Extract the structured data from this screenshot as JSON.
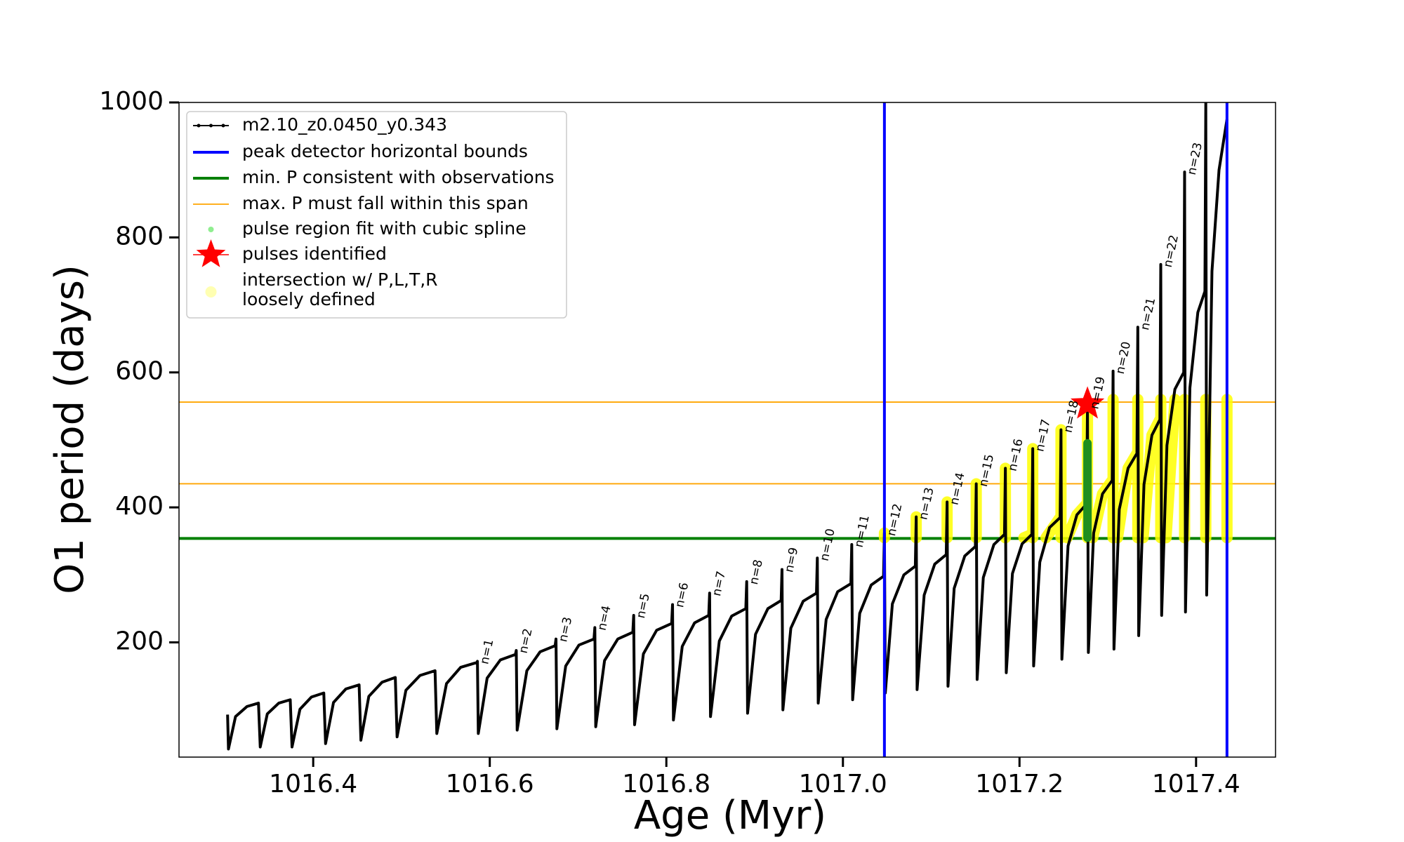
{
  "chart_data": {
    "type": "line",
    "xlabel": "Age (Myr)",
    "ylabel": "O1 period (days)",
    "xlim": [
      1016.248,
      1017.49
    ],
    "ylim": [
      30,
      1000
    ],
    "xticks": [
      1016.4,
      1016.6,
      1016.8,
      {
        "value": 1017,
        "label": "1017.0"
      },
      1017.2,
      1017.4
    ],
    "yticks": [
      200,
      400,
      600,
      800,
      1000
    ],
    "legend": "upper left",
    "series": [
      {
        "name": "m2.10_z0.0450_y0.343",
        "color": "#000000",
        "x": [
          1016.303,
          1016.304,
          1016.312,
          1016.325,
          1016.338,
          1016.34,
          1016.348,
          1016.361,
          1016.374,
          1016.376,
          1016.385,
          1016.398,
          1016.412,
          1016.414,
          1016.423,
          1016.437,
          1016.452,
          1016.454,
          1016.463,
          1016.478,
          1016.493,
          1016.495,
          1016.505,
          1016.521,
          1016.538,
          1016.54,
          1016.551,
          1016.567,
          1016.585,
          1016.586,
          1016.587,
          1016.597,
          1016.612,
          1016.629,
          1016.63,
          1016.631,
          1016.642,
          1016.657,
          1016.674,
          1016.675,
          1016.676,
          1016.686,
          1016.701,
          1016.718,
          1016.719,
          1016.72,
          1016.73,
          1016.745,
          1016.762,
          1016.763,
          1016.764,
          1016.774,
          1016.789,
          1016.806,
          1016.807,
          1016.808,
          1016.818,
          1016.832,
          1016.848,
          1016.849,
          1016.85,
          1016.86,
          1016.874,
          1016.89,
          1016.891,
          1016.892,
          1016.901,
          1016.915,
          1016.93,
          1016.931,
          1016.932,
          1016.941,
          1016.955,
          1016.97,
          1016.971,
          1016.972,
          1016.981,
          1016.994,
          1017.009,
          1017.01,
          1017.011,
          1017.019,
          1017.032,
          1017.046,
          1017.047,
          1017.048,
          1017.056,
          1017.069,
          1017.082,
          1017.083,
          1017.084,
          1017.092,
          1017.104,
          1017.117,
          1017.118,
          1017.119,
          1017.126,
          1017.138,
          1017.15,
          1017.151,
          1017.152,
          1017.159,
          1017.171,
          1017.183,
          1017.184,
          1017.185,
          1017.192,
          1017.203,
          1017.214,
          1017.215,
          1017.216,
          1017.223,
          1017.234,
          1017.246,
          1017.247,
          1017.248,
          1017.255,
          1017.265,
          1017.276,
          1017.277,
          1017.278,
          1017.284,
          1017.294,
          1017.305,
          1017.306,
          1017.307,
          1017.313,
          1017.323,
          1017.333,
          1017.334,
          1017.335,
          1017.341,
          1017.35,
          1017.359,
          1017.36,
          1017.361,
          1017.367,
          1017.376,
          1017.386,
          1017.387,
          1017.388,
          1017.393,
          1017.402,
          1017.41,
          1017.411,
          1017.412,
          1017.418,
          1017.426,
          1017.435
        ],
        "values": [
          93,
          42,
          90,
          105,
          110,
          45,
          94,
          110,
          115,
          45,
          101,
          119,
          125,
          50,
          111,
          131,
          137,
          55,
          120,
          141,
          148,
          60,
          129,
          151,
          158,
          65,
          139,
          163,
          170,
          172,
          65,
          147,
          174,
          182,
          188,
          70,
          158,
          186,
          195,
          205,
          72,
          165,
          196,
          205,
          222,
          75,
          173,
          205,
          215,
          240,
          78,
          183,
          218,
          228,
          256,
          85,
          194,
          229,
          240,
          273,
          90,
          202,
          239,
          250,
          290,
          95,
          212,
          250,
          262,
          308,
          100,
          221,
          261,
          273,
          325,
          110,
          234,
          275,
          287,
          345,
          115,
          243,
          285,
          298,
          362,
          125,
          257,
          300,
          313,
          386,
          130,
          270,
          316,
          330,
          408,
          135,
          280,
          328,
          342,
          435,
          145,
          296,
          345,
          360,
          458,
          155,
          302,
          346,
          360,
          487,
          165,
          319,
          370,
          385,
          515,
          175,
          343,
          389,
          405,
          550,
          185,
          362,
          420,
          440,
          602,
          190,
          397,
          458,
          480,
          667,
          210,
          434,
          507,
          530,
          760,
          240,
          492,
          575,
          600,
          897,
          245,
          577,
          689,
          720,
          1000,
          270,
          750,
          900,
          975
        ]
      },
      {
        "name": "pulse region fit with cubic spline",
        "color": "#1f8f1f",
        "x": [
          1017.277,
          1017.277
        ],
        "values": [
          355,
          495
        ]
      },
      {
        "name": [
          "intersection w/ P,L,T,R",
          "loosely defined"
        ],
        "color": "#ffff00",
        "x": [
          1017.047,
          1017.047,
          null,
          1017.083,
          1017.083,
          null,
          1017.118,
          1017.118,
          null,
          1017.151,
          1017.151,
          null,
          1017.184,
          1017.184,
          null,
          1017.215,
          1017.215,
          null,
          1017.247,
          1017.247,
          null,
          1017.277,
          1017.277,
          null,
          1017.306,
          1017.306,
          null,
          1017.334,
          1017.334,
          null,
          1017.36,
          1017.36,
          null,
          1017.387,
          1017.387,
          null,
          1017.411,
          1017.411,
          null,
          1017.435,
          1017.435,
          null,
          1017.205,
          1017.214,
          null,
          1017.23,
          1017.246,
          null,
          1017.254,
          1017.265,
          1017.276,
          null,
          1017.283,
          1017.294,
          1017.305,
          null,
          1017.311,
          1017.323,
          1017.333,
          null,
          1017.34,
          1017.35,
          1017.359,
          null,
          1017.366,
          1017.376
        ],
        "values": [
          355,
          362,
          null,
          355,
          386,
          null,
          355,
          408,
          null,
          355,
          435,
          null,
          355,
          458,
          null,
          355,
          487,
          null,
          355,
          515,
          null,
          355,
          550,
          null,
          355,
          560,
          null,
          355,
          560,
          null,
          355,
          560,
          null,
          355,
          560,
          null,
          355,
          560,
          null,
          355,
          560,
          null,
          355,
          360,
          null,
          355,
          385,
          null,
          355,
          389,
          405,
          null,
          355,
          420,
          440,
          null,
          355,
          458,
          480,
          null,
          355,
          507,
          530,
          null,
          355,
          560
        ]
      }
    ],
    "vlines": {
      "name": "peak detector horizontal bounds",
      "color": "#0000ff",
      "values": [
        1017.047,
        1017.435
      ]
    },
    "hlines": [
      {
        "name": "min. P consistent with observations",
        "color": "#008000",
        "values": [
          354
        ]
      },
      {
        "name": "max. P must fall within this span",
        "color": "#ffa500",
        "values": [
          435,
          556
        ]
      }
    ],
    "stars": {
      "name": "pulses identified",
      "color": "#ff0000",
      "x": [
        1017.277
      ],
      "values": [
        553
      ]
    },
    "annotations": [
      {
        "text": "n=1",
        "x": 1016.586,
        "y": 172
      },
      {
        "text": "n=2",
        "x": 1016.63,
        "y": 188
      },
      {
        "text": "n=3",
        "x": 1016.675,
        "y": 205
      },
      {
        "text": "n=4",
        "x": 1016.719,
        "y": 222
      },
      {
        "text": "n=5",
        "x": 1016.763,
        "y": 240
      },
      {
        "text": "n=6",
        "x": 1016.807,
        "y": 256
      },
      {
        "text": "n=7",
        "x": 1016.849,
        "y": 273
      },
      {
        "text": "n=8",
        "x": 1016.891,
        "y": 290
      },
      {
        "text": "n=9",
        "x": 1016.931,
        "y": 308
      },
      {
        "text": "n=10",
        "x": 1016.971,
        "y": 325
      },
      {
        "text": "n=11",
        "x": 1017.01,
        "y": 345
      },
      {
        "text": "n=12",
        "x": 1017.047,
        "y": 362
      },
      {
        "text": "n=13",
        "x": 1017.083,
        "y": 386
      },
      {
        "text": "n=14",
        "x": 1017.118,
        "y": 408
      },
      {
        "text": "n=15",
        "x": 1017.151,
        "y": 435
      },
      {
        "text": "n=16",
        "x": 1017.184,
        "y": 458
      },
      {
        "text": "n=17",
        "x": 1017.215,
        "y": 487
      },
      {
        "text": "n=18",
        "x": 1017.247,
        "y": 515
      },
      {
        "text": "n=19",
        "x": 1017.277,
        "y": 550
      },
      {
        "text": "n=20",
        "x": 1017.306,
        "y": 602
      },
      {
        "text": "n=21",
        "x": 1017.334,
        "y": 667
      },
      {
        "text": "n=22",
        "x": 1017.36,
        "y": 760
      },
      {
        "text": "n=23",
        "x": 1017.387,
        "y": 897
      }
    ]
  }
}
